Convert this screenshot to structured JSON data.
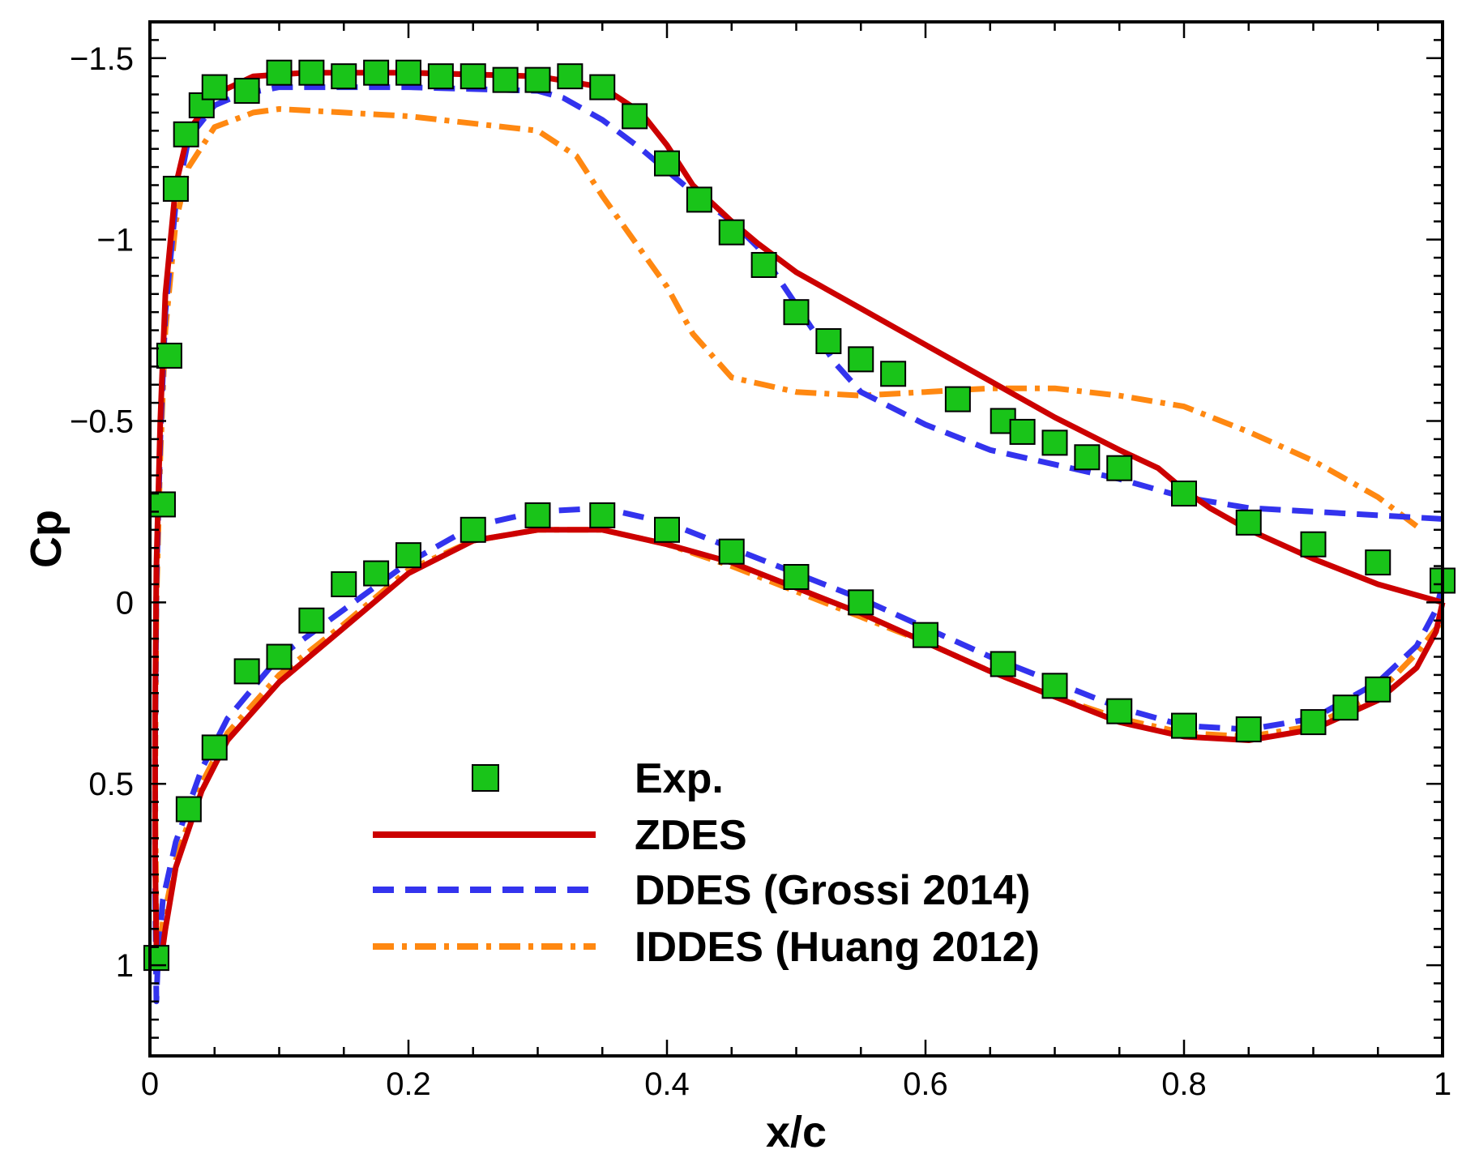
{
  "chart_data": {
    "type": "line",
    "xlabel": "x/c",
    "ylabel": "Cp",
    "xlim": [
      0,
      1
    ],
    "ylim": [
      1.25,
      -1.6
    ],
    "y_inverted": true,
    "grid": false,
    "legend_position": "lower-middle",
    "x_ticks": [
      {
        "value": 0,
        "label": "0"
      },
      {
        "value": 0.2,
        "label": "0.2"
      },
      {
        "value": 0.4,
        "label": "0.4"
      },
      {
        "value": 0.6,
        "label": "0.6"
      },
      {
        "value": 0.8,
        "label": "0.8"
      },
      {
        "value": 1,
        "label": "1"
      }
    ],
    "y_ticks": [
      {
        "value": -1.5,
        "label": "−1.5"
      },
      {
        "value": -1,
        "label": "−1"
      },
      {
        "value": -0.5,
        "label": "−0.5"
      },
      {
        "value": 0,
        "label": "0"
      },
      {
        "value": 0.5,
        "label": "0.5"
      },
      {
        "value": 1,
        "label": "1"
      }
    ],
    "series": [
      {
        "name": "Exp.",
        "style": "markers",
        "color": "#19c419",
        "points": [
          [
            0.005,
            0.98
          ],
          [
            0.01,
            -0.27
          ],
          [
            0.015,
            -0.68
          ],
          [
            0.02,
            -1.14
          ],
          [
            0.028,
            -1.29
          ],
          [
            0.04,
            -1.37
          ],
          [
            0.05,
            -1.42
          ],
          [
            0.075,
            -1.41
          ],
          [
            0.1,
            -1.46
          ],
          [
            0.125,
            -1.46
          ],
          [
            0.15,
            -1.45
          ],
          [
            0.175,
            -1.46
          ],
          [
            0.2,
            -1.46
          ],
          [
            0.225,
            -1.45
          ],
          [
            0.25,
            -1.45
          ],
          [
            0.275,
            -1.44
          ],
          [
            0.3,
            -1.44
          ],
          [
            0.325,
            -1.45
          ],
          [
            0.35,
            -1.42
          ],
          [
            0.375,
            -1.34
          ],
          [
            0.4,
            -1.21
          ],
          [
            0.425,
            -1.11
          ],
          [
            0.45,
            -1.02
          ],
          [
            0.475,
            -0.93
          ],
          [
            0.5,
            -0.8
          ],
          [
            0.525,
            -0.72
          ],
          [
            0.55,
            -0.67
          ],
          [
            0.575,
            -0.63
          ],
          [
            0.625,
            -0.56
          ],
          [
            0.66,
            -0.5
          ],
          [
            0.675,
            -0.47
          ],
          [
            0.7,
            -0.44
          ],
          [
            0.725,
            -0.4
          ],
          [
            0.75,
            -0.37
          ],
          [
            0.8,
            -0.3
          ],
          [
            0.85,
            -0.22
          ],
          [
            0.9,
            -0.16
          ],
          [
            0.95,
            -0.11
          ],
          [
            1.0,
            -0.06
          ],
          [
            0.03,
            0.57
          ],
          [
            0.05,
            0.4
          ],
          [
            0.075,
            0.19
          ],
          [
            0.1,
            0.15
          ],
          [
            0.125,
            0.05
          ],
          [
            0.15,
            -0.05
          ],
          [
            0.175,
            -0.08
          ],
          [
            0.2,
            -0.13
          ],
          [
            0.25,
            -0.2
          ],
          [
            0.3,
            -0.24
          ],
          [
            0.35,
            -0.24
          ],
          [
            0.4,
            -0.2
          ],
          [
            0.45,
            -0.14
          ],
          [
            0.5,
            -0.07
          ],
          [
            0.55,
            0.0
          ],
          [
            0.6,
            0.09
          ],
          [
            0.66,
            0.17
          ],
          [
            0.7,
            0.23
          ],
          [
            0.75,
            0.3
          ],
          [
            0.8,
            0.34
          ],
          [
            0.85,
            0.35
          ],
          [
            0.9,
            0.33
          ],
          [
            0.925,
            0.29
          ],
          [
            0.95,
            0.24
          ]
        ]
      },
      {
        "name": "ZDES",
        "style": "solid",
        "color": "#cc0000",
        "points": [
          [
            1.0,
            0.0
          ],
          [
            0.95,
            -0.05
          ],
          [
            0.9,
            -0.12
          ],
          [
            0.85,
            -0.2
          ],
          [
            0.82,
            -0.26
          ],
          [
            0.8,
            -0.31
          ],
          [
            0.78,
            -0.37
          ],
          [
            0.75,
            -0.42
          ],
          [
            0.7,
            -0.51
          ],
          [
            0.65,
            -0.61
          ],
          [
            0.6,
            -0.71
          ],
          [
            0.55,
            -0.81
          ],
          [
            0.5,
            -0.91
          ],
          [
            0.47,
            -0.99
          ],
          [
            0.45,
            -1.05
          ],
          [
            0.42,
            -1.15
          ],
          [
            0.4,
            -1.26
          ],
          [
            0.38,
            -1.35
          ],
          [
            0.35,
            -1.42
          ],
          [
            0.3,
            -1.45
          ],
          [
            0.2,
            -1.46
          ],
          [
            0.12,
            -1.46
          ],
          [
            0.08,
            -1.45
          ],
          [
            0.05,
            -1.4
          ],
          [
            0.03,
            -1.3
          ],
          [
            0.02,
            -1.15
          ],
          [
            0.012,
            -0.85
          ],
          [
            0.008,
            -0.5
          ],
          [
            0.005,
            -0.1
          ],
          [
            0.004,
            0.3
          ],
          [
            0.004,
            0.7
          ],
          [
            0.005,
            0.95
          ],
          [
            0.008,
            1.0
          ],
          [
            0.012,
            0.9
          ],
          [
            0.02,
            0.73
          ],
          [
            0.04,
            0.52
          ],
          [
            0.06,
            0.38
          ],
          [
            0.1,
            0.22
          ],
          [
            0.15,
            0.07
          ],
          [
            0.2,
            -0.08
          ],
          [
            0.25,
            -0.17
          ],
          [
            0.3,
            -0.2
          ],
          [
            0.35,
            -0.2
          ],
          [
            0.4,
            -0.16
          ],
          [
            0.45,
            -0.11
          ],
          [
            0.5,
            -0.04
          ],
          [
            0.55,
            0.03
          ],
          [
            0.6,
            0.11
          ],
          [
            0.65,
            0.19
          ],
          [
            0.7,
            0.26
          ],
          [
            0.75,
            0.33
          ],
          [
            0.8,
            0.37
          ],
          [
            0.85,
            0.38
          ],
          [
            0.9,
            0.35
          ],
          [
            0.95,
            0.27
          ],
          [
            0.98,
            0.18
          ],
          [
            0.995,
            0.08
          ],
          [
            1.0,
            0.0
          ]
        ]
      },
      {
        "name": "DDES (Grossi 2014)",
        "style": "dashed",
        "color": "#3333ee",
        "points": [
          [
            1.0,
            -0.23
          ],
          [
            0.95,
            -0.24
          ],
          [
            0.9,
            -0.25
          ],
          [
            0.85,
            -0.26
          ],
          [
            0.8,
            -0.29
          ],
          [
            0.75,
            -0.34
          ],
          [
            0.7,
            -0.38
          ],
          [
            0.65,
            -0.42
          ],
          [
            0.6,
            -0.49
          ],
          [
            0.55,
            -0.58
          ],
          [
            0.53,
            -0.66
          ],
          [
            0.5,
            -0.82
          ],
          [
            0.47,
            -0.98
          ],
          [
            0.45,
            -1.05
          ],
          [
            0.42,
            -1.13
          ],
          [
            0.38,
            -1.25
          ],
          [
            0.35,
            -1.33
          ],
          [
            0.32,
            -1.39
          ],
          [
            0.3,
            -1.41
          ],
          [
            0.2,
            -1.42
          ],
          [
            0.1,
            -1.42
          ],
          [
            0.07,
            -1.4
          ],
          [
            0.05,
            -1.37
          ],
          [
            0.03,
            -1.28
          ],
          [
            0.02,
            -1.1
          ],
          [
            0.012,
            -0.8
          ],
          [
            0.008,
            -0.45
          ],
          [
            0.005,
            -0.05
          ],
          [
            0.004,
            0.4
          ],
          [
            0.004,
            0.8
          ],
          [
            0.005,
            1.1
          ],
          [
            0.006,
            1.0
          ],
          [
            0.01,
            0.82
          ],
          [
            0.02,
            0.66
          ],
          [
            0.04,
            0.46
          ],
          [
            0.06,
            0.32
          ],
          [
            0.1,
            0.15
          ],
          [
            0.15,
            0.02
          ],
          [
            0.2,
            -0.11
          ],
          [
            0.25,
            -0.21
          ],
          [
            0.3,
            -0.25
          ],
          [
            0.35,
            -0.26
          ],
          [
            0.4,
            -0.22
          ],
          [
            0.45,
            -0.15
          ],
          [
            0.5,
            -0.08
          ],
          [
            0.55,
            -0.01
          ],
          [
            0.6,
            0.07
          ],
          [
            0.65,
            0.15
          ],
          [
            0.7,
            0.22
          ],
          [
            0.75,
            0.29
          ],
          [
            0.8,
            0.34
          ],
          [
            0.85,
            0.35
          ],
          [
            0.9,
            0.32
          ],
          [
            0.95,
            0.22
          ],
          [
            0.98,
            0.12
          ],
          [
            0.995,
            0.02
          ],
          [
            1.0,
            -0.05
          ]
        ]
      },
      {
        "name": "IDDES (Huang 2012)",
        "style": "dashdot",
        "color": "#ff8811",
        "points": [
          [
            0.98,
            -0.21
          ],
          [
            0.95,
            -0.29
          ],
          [
            0.9,
            -0.39
          ],
          [
            0.85,
            -0.47
          ],
          [
            0.8,
            -0.54
          ],
          [
            0.75,
            -0.57
          ],
          [
            0.7,
            -0.59
          ],
          [
            0.65,
            -0.59
          ],
          [
            0.6,
            -0.58
          ],
          [
            0.55,
            -0.57
          ],
          [
            0.5,
            -0.58
          ],
          [
            0.45,
            -0.62
          ],
          [
            0.42,
            -0.74
          ],
          [
            0.4,
            -0.87
          ],
          [
            0.37,
            -1.02
          ],
          [
            0.35,
            -1.12
          ],
          [
            0.33,
            -1.23
          ],
          [
            0.3,
            -1.3
          ],
          [
            0.2,
            -1.34
          ],
          [
            0.15,
            -1.35
          ],
          [
            0.1,
            -1.36
          ],
          [
            0.08,
            -1.35
          ],
          [
            0.05,
            -1.31
          ],
          [
            0.03,
            -1.2
          ],
          [
            0.02,
            -1.05
          ],
          [
            0.012,
            -0.75
          ],
          [
            0.008,
            -0.4
          ],
          [
            0.005,
            0.0
          ],
          [
            0.004,
            0.5
          ],
          [
            0.005,
            0.9
          ],
          [
            0.006,
            1.0
          ],
          [
            0.01,
            0.88
          ],
          [
            0.02,
            0.71
          ],
          [
            0.04,
            0.5
          ],
          [
            0.06,
            0.36
          ],
          [
            0.1,
            0.2
          ],
          [
            0.15,
            0.06
          ],
          [
            0.2,
            -0.09
          ],
          [
            0.25,
            -0.17
          ],
          [
            0.3,
            -0.2
          ],
          [
            0.35,
            -0.2
          ],
          [
            0.4,
            -0.16
          ],
          [
            0.45,
            -0.1
          ],
          [
            0.5,
            -0.03
          ],
          [
            0.55,
            0.04
          ],
          [
            0.6,
            0.11
          ],
          [
            0.65,
            0.19
          ],
          [
            0.7,
            0.26
          ],
          [
            0.75,
            0.32
          ],
          [
            0.8,
            0.36
          ],
          [
            0.85,
            0.37
          ],
          [
            0.9,
            0.34
          ],
          [
            0.95,
            0.25
          ],
          [
            0.98,
            0.14
          ],
          [
            1.0,
            0.05
          ]
        ]
      }
    ]
  }
}
